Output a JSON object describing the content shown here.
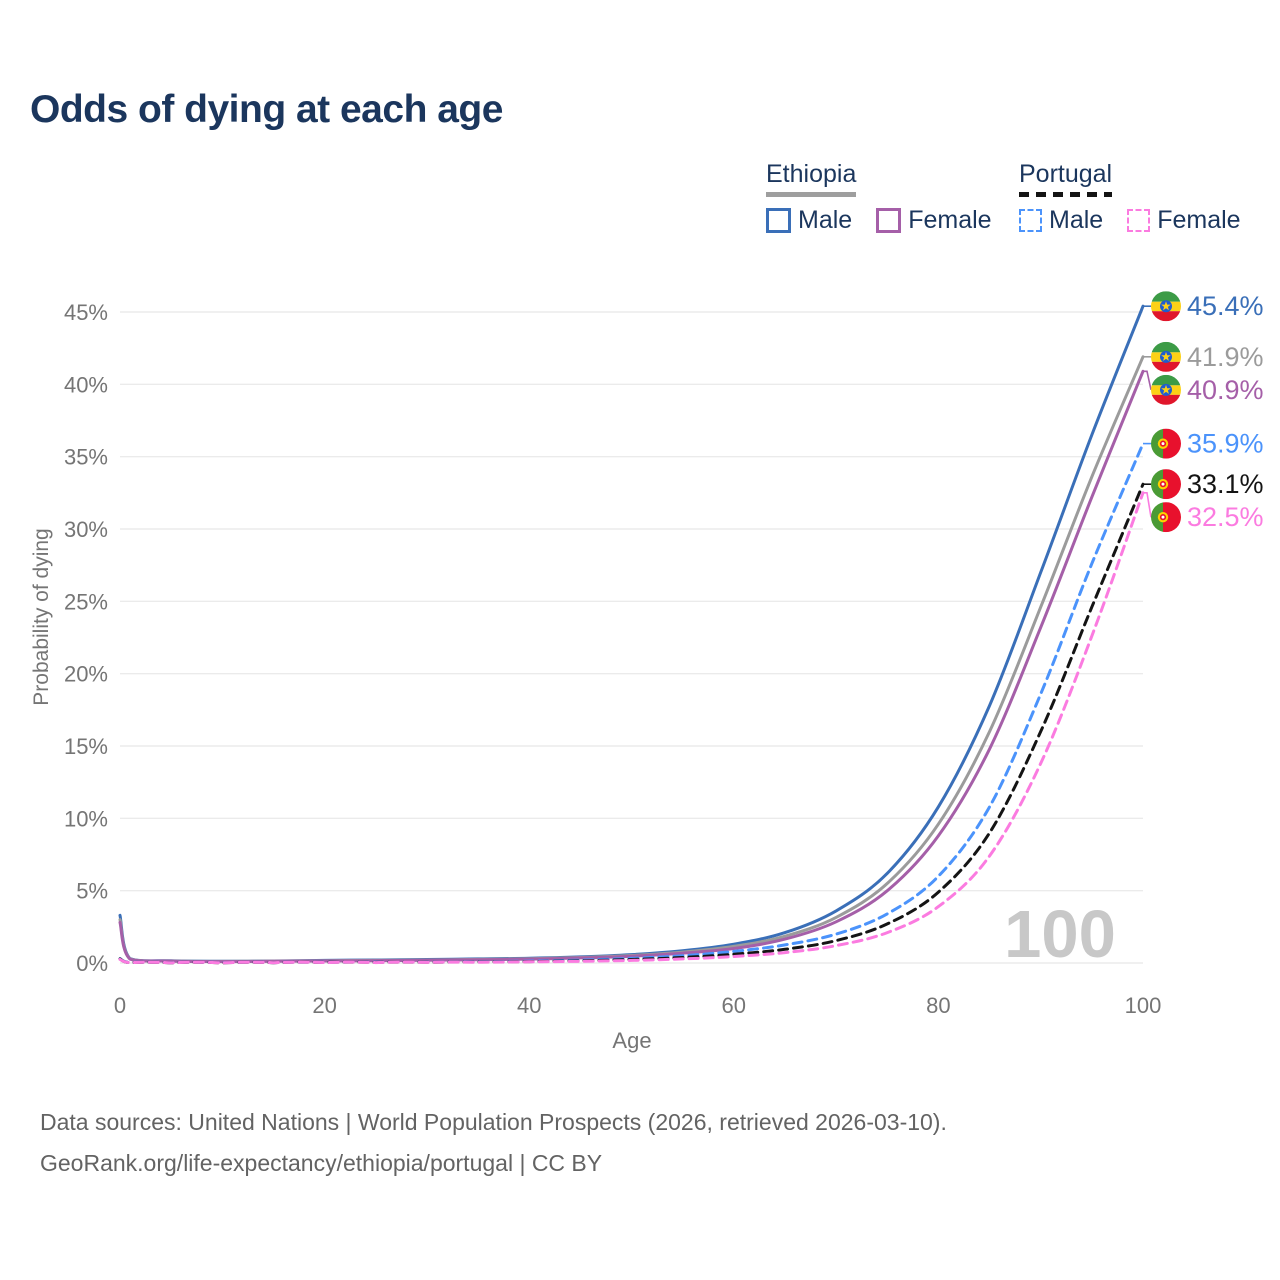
{
  "title": "Odds of dying at each age",
  "legend": {
    "groups": [
      {
        "name": "Ethiopia",
        "line_style": "solid",
        "line_color": "#9e9e9e",
        "items": [
          {
            "label": "Male",
            "color": "#3a6fb8",
            "dashed": false
          },
          {
            "label": "Female",
            "color": "#a55fa8",
            "dashed": false
          }
        ]
      },
      {
        "name": "Portugal",
        "line_style": "dashed",
        "line_color": "#141414",
        "items": [
          {
            "label": "Male",
            "color": "#4b93fb",
            "dashed": true
          },
          {
            "label": "Female",
            "color": "#fb7be0",
            "dashed": true
          }
        ]
      }
    ]
  },
  "chart_data": {
    "type": "line",
    "title": "Odds of dying at each age",
    "xlabel": "Age",
    "ylabel": "Probability of dying",
    "xlim": [
      0,
      100
    ],
    "ylim_percent": [
      0,
      45
    ],
    "grid": "horizontal",
    "legend_position": "top-right",
    "watermark": "100",
    "xticks": [
      "0",
      "20",
      "40",
      "60",
      "80",
      "100"
    ],
    "yticks": [
      "0%",
      "5%",
      "10%",
      "15%",
      "20%",
      "25%",
      "30%",
      "35%",
      "40%",
      "45%"
    ],
    "x": [
      0,
      1,
      5,
      10,
      15,
      20,
      25,
      30,
      35,
      40,
      45,
      50,
      55,
      60,
      65,
      70,
      75,
      80,
      85,
      90,
      95,
      100
    ],
    "series": [
      {
        "name": "Ethiopia Male",
        "country": "Ethiopia",
        "group": "Male",
        "line": "solid",
        "color": "#3a6fb8",
        "end_label": "45.4%",
        "values": [
          3.3,
          0.3,
          0.15,
          0.12,
          0.14,
          0.18,
          0.21,
          0.24,
          0.28,
          0.33,
          0.42,
          0.58,
          0.85,
          1.3,
          2.1,
          3.6,
          6.2,
          10.8,
          17.8,
          27.0,
          36.5,
          45.4
        ]
      },
      {
        "name": "Ethiopia Both sexes",
        "country": "Ethiopia",
        "group": "Both sexes",
        "line": "solid",
        "color": "#9b9b9b",
        "end_label": "41.9%",
        "values": [
          3.0,
          0.28,
          0.14,
          0.11,
          0.13,
          0.16,
          0.18,
          0.21,
          0.25,
          0.3,
          0.38,
          0.52,
          0.75,
          1.15,
          1.85,
          3.15,
          5.5,
          9.6,
          16.0,
          24.6,
          33.6,
          41.9
        ]
      },
      {
        "name": "Ethiopia Female",
        "country": "Ethiopia",
        "group": "Female",
        "line": "solid",
        "color": "#a55fa8",
        "end_label": "40.9%",
        "values": [
          2.8,
          0.26,
          0.13,
          0.1,
          0.12,
          0.14,
          0.16,
          0.19,
          0.22,
          0.27,
          0.35,
          0.47,
          0.68,
          1.0,
          1.65,
          2.85,
          5.0,
          8.8,
          14.8,
          23.2,
          32.2,
          40.9
        ]
      },
      {
        "name": "Portugal Male",
        "country": "Portugal",
        "group": "Male",
        "line": "dashed",
        "color": "#4b93fb",
        "end_label": "35.9%",
        "values": [
          0.3,
          0.03,
          0.02,
          0.02,
          0.03,
          0.05,
          0.06,
          0.07,
          0.09,
          0.13,
          0.2,
          0.32,
          0.5,
          0.8,
          1.25,
          2.0,
          3.4,
          6.0,
          10.8,
          18.6,
          27.6,
          35.9
        ]
      },
      {
        "name": "Portugal Both sexes",
        "country": "Portugal",
        "group": "Both sexes",
        "line": "dashed",
        "color": "#141414",
        "end_label": "33.1%",
        "values": [
          0.28,
          0.02,
          0.01,
          0.01,
          0.02,
          0.04,
          0.04,
          0.05,
          0.07,
          0.1,
          0.15,
          0.24,
          0.38,
          0.6,
          0.95,
          1.55,
          2.7,
          4.9,
          9.0,
          16.0,
          24.6,
          33.1
        ]
      },
      {
        "name": "Portugal Female",
        "country": "Portugal",
        "group": "Female",
        "line": "dashed",
        "color": "#fb7be0",
        "end_label": "32.5%",
        "values": [
          0.25,
          0.02,
          0.01,
          0.01,
          0.02,
          0.03,
          0.03,
          0.04,
          0.05,
          0.08,
          0.12,
          0.18,
          0.28,
          0.45,
          0.72,
          1.2,
          2.1,
          3.9,
          7.4,
          13.8,
          22.6,
          32.5
        ]
      }
    ]
  },
  "colors": {
    "title": "#1b365d",
    "axis_text": "#757575",
    "gridline": "#ebebeb",
    "watermark": "#c8c8c8",
    "footer_text": "#636363"
  },
  "footer": {
    "line1": "Data sources: United Nations | World Population Prospects (2026, retrieved 2026-03-10).",
    "line2": "GeoRank.org/life-expectancy/ethiopia/portugal | CC BY"
  }
}
